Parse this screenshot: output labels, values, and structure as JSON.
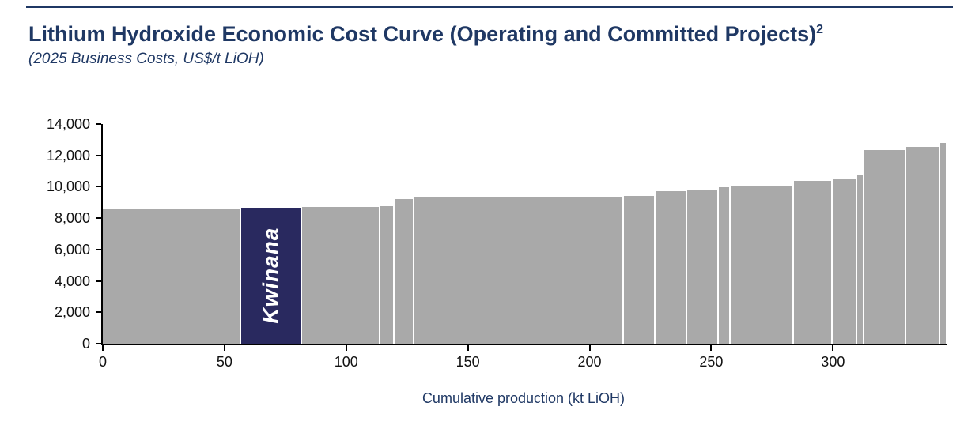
{
  "page": {
    "title_main": "Lithium Hydroxide Economic Cost Curve (Operating and Committed Projects)",
    "title_sup": "2",
    "subtitle": "(2025 Business Costs, US$/t LiOH)"
  },
  "chart_data": {
    "type": "bar",
    "variant": "cost-curve",
    "title": "Lithium Hydroxide Economic Cost Curve (Operating and Committed Projects)2",
    "subtitle": "(2025 Business Costs, US$/t LiOH)",
    "xlabel": "Cumulative production (kt LiOH)",
    "ylabel": "",
    "xlim": [
      0,
      347
    ],
    "ylim": [
      0,
      14000
    ],
    "x_ticks": [
      0,
      50,
      100,
      150,
      200,
      250,
      300
    ],
    "y_ticks": [
      0,
      2000,
      4000,
      6000,
      8000,
      10000,
      12000,
      14000
    ],
    "y_tick_labels": [
      "0",
      "2,000",
      "4,000",
      "6,000",
      "8,000",
      "10,000",
      "12,000",
      "14,000"
    ],
    "grid": false,
    "legend": "none",
    "highlight_label": "Kwinana",
    "colors": {
      "bar": "#a9a9a9",
      "highlight": "#29295f",
      "title": "#1f3864",
      "axis": "#000000"
    },
    "segments": [
      {
        "from": 0,
        "to": 57,
        "value": 8600,
        "highlight": false
      },
      {
        "from": 57,
        "to": 82,
        "value": 8650,
        "highlight": true,
        "label": "Kwinana"
      },
      {
        "from": 82,
        "to": 114,
        "value": 8700,
        "highlight": false
      },
      {
        "from": 114,
        "to": 120,
        "value": 8750,
        "highlight": false
      },
      {
        "from": 120,
        "to": 128,
        "value": 9200,
        "highlight": false
      },
      {
        "from": 128,
        "to": 214,
        "value": 9350,
        "highlight": false
      },
      {
        "from": 214,
        "to": 227,
        "value": 9400,
        "highlight": false
      },
      {
        "from": 227,
        "to": 240,
        "value": 9700,
        "highlight": false
      },
      {
        "from": 240,
        "to": 253,
        "value": 9800,
        "highlight": false
      },
      {
        "from": 253,
        "to": 258,
        "value": 9950,
        "highlight": false
      },
      {
        "from": 258,
        "to": 284,
        "value": 10000,
        "highlight": false
      },
      {
        "from": 284,
        "to": 300,
        "value": 10400,
        "highlight": false
      },
      {
        "from": 300,
        "to": 310,
        "value": 10550,
        "highlight": false
      },
      {
        "from": 310,
        "to": 313,
        "value": 10750,
        "highlight": false
      },
      {
        "from": 313,
        "to": 330,
        "value": 12350,
        "highlight": false
      },
      {
        "from": 330,
        "to": 344,
        "value": 12550,
        "highlight": false
      },
      {
        "from": 344,
        "to": 347,
        "value": 12800,
        "highlight": false
      }
    ]
  }
}
